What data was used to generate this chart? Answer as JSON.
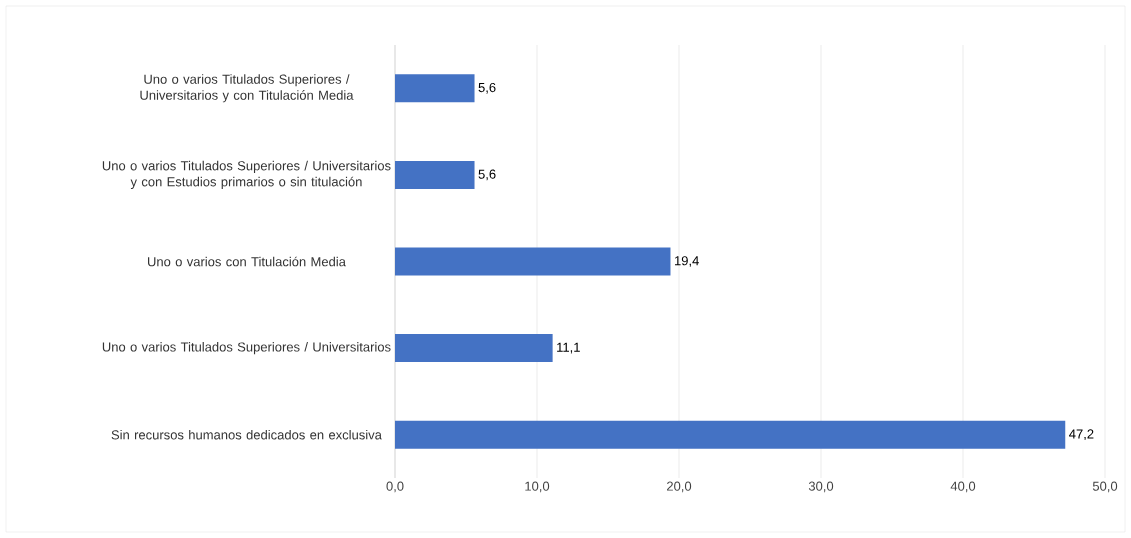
{
  "chart_data": {
    "type": "bar",
    "orientation": "horizontal",
    "categories": [
      "Uno o varios Titulados Superiores / Universitarios y con Titulación Media",
      "Uno o varios Titulados Superiores / Universitarios y con Estudios primarios o sin titulación",
      "Uno o varios con Titulación Media",
      "Uno o varios Titulados Superiores / Universitarios",
      "Sin recursos humanos dedicados en exclusiva"
    ],
    "values": [
      5.6,
      5.6,
      19.4,
      11.1,
      47.2
    ],
    "value_labels": [
      "5,6",
      "5,6",
      "19,4",
      "11,1",
      "47,2"
    ],
    "color": "#4472c4",
    "xlim": [
      0,
      50
    ],
    "xticks": [
      {
        "value": 0,
        "label": "0,0"
      },
      {
        "value": 10,
        "label": "10,0"
      },
      {
        "value": 20,
        "label": "20,0"
      },
      {
        "value": 30,
        "label": "30,0"
      },
      {
        "value": 40,
        "label": "40,0"
      },
      {
        "value": 50,
        "label": "50,0"
      }
    ],
    "grid": "x"
  }
}
